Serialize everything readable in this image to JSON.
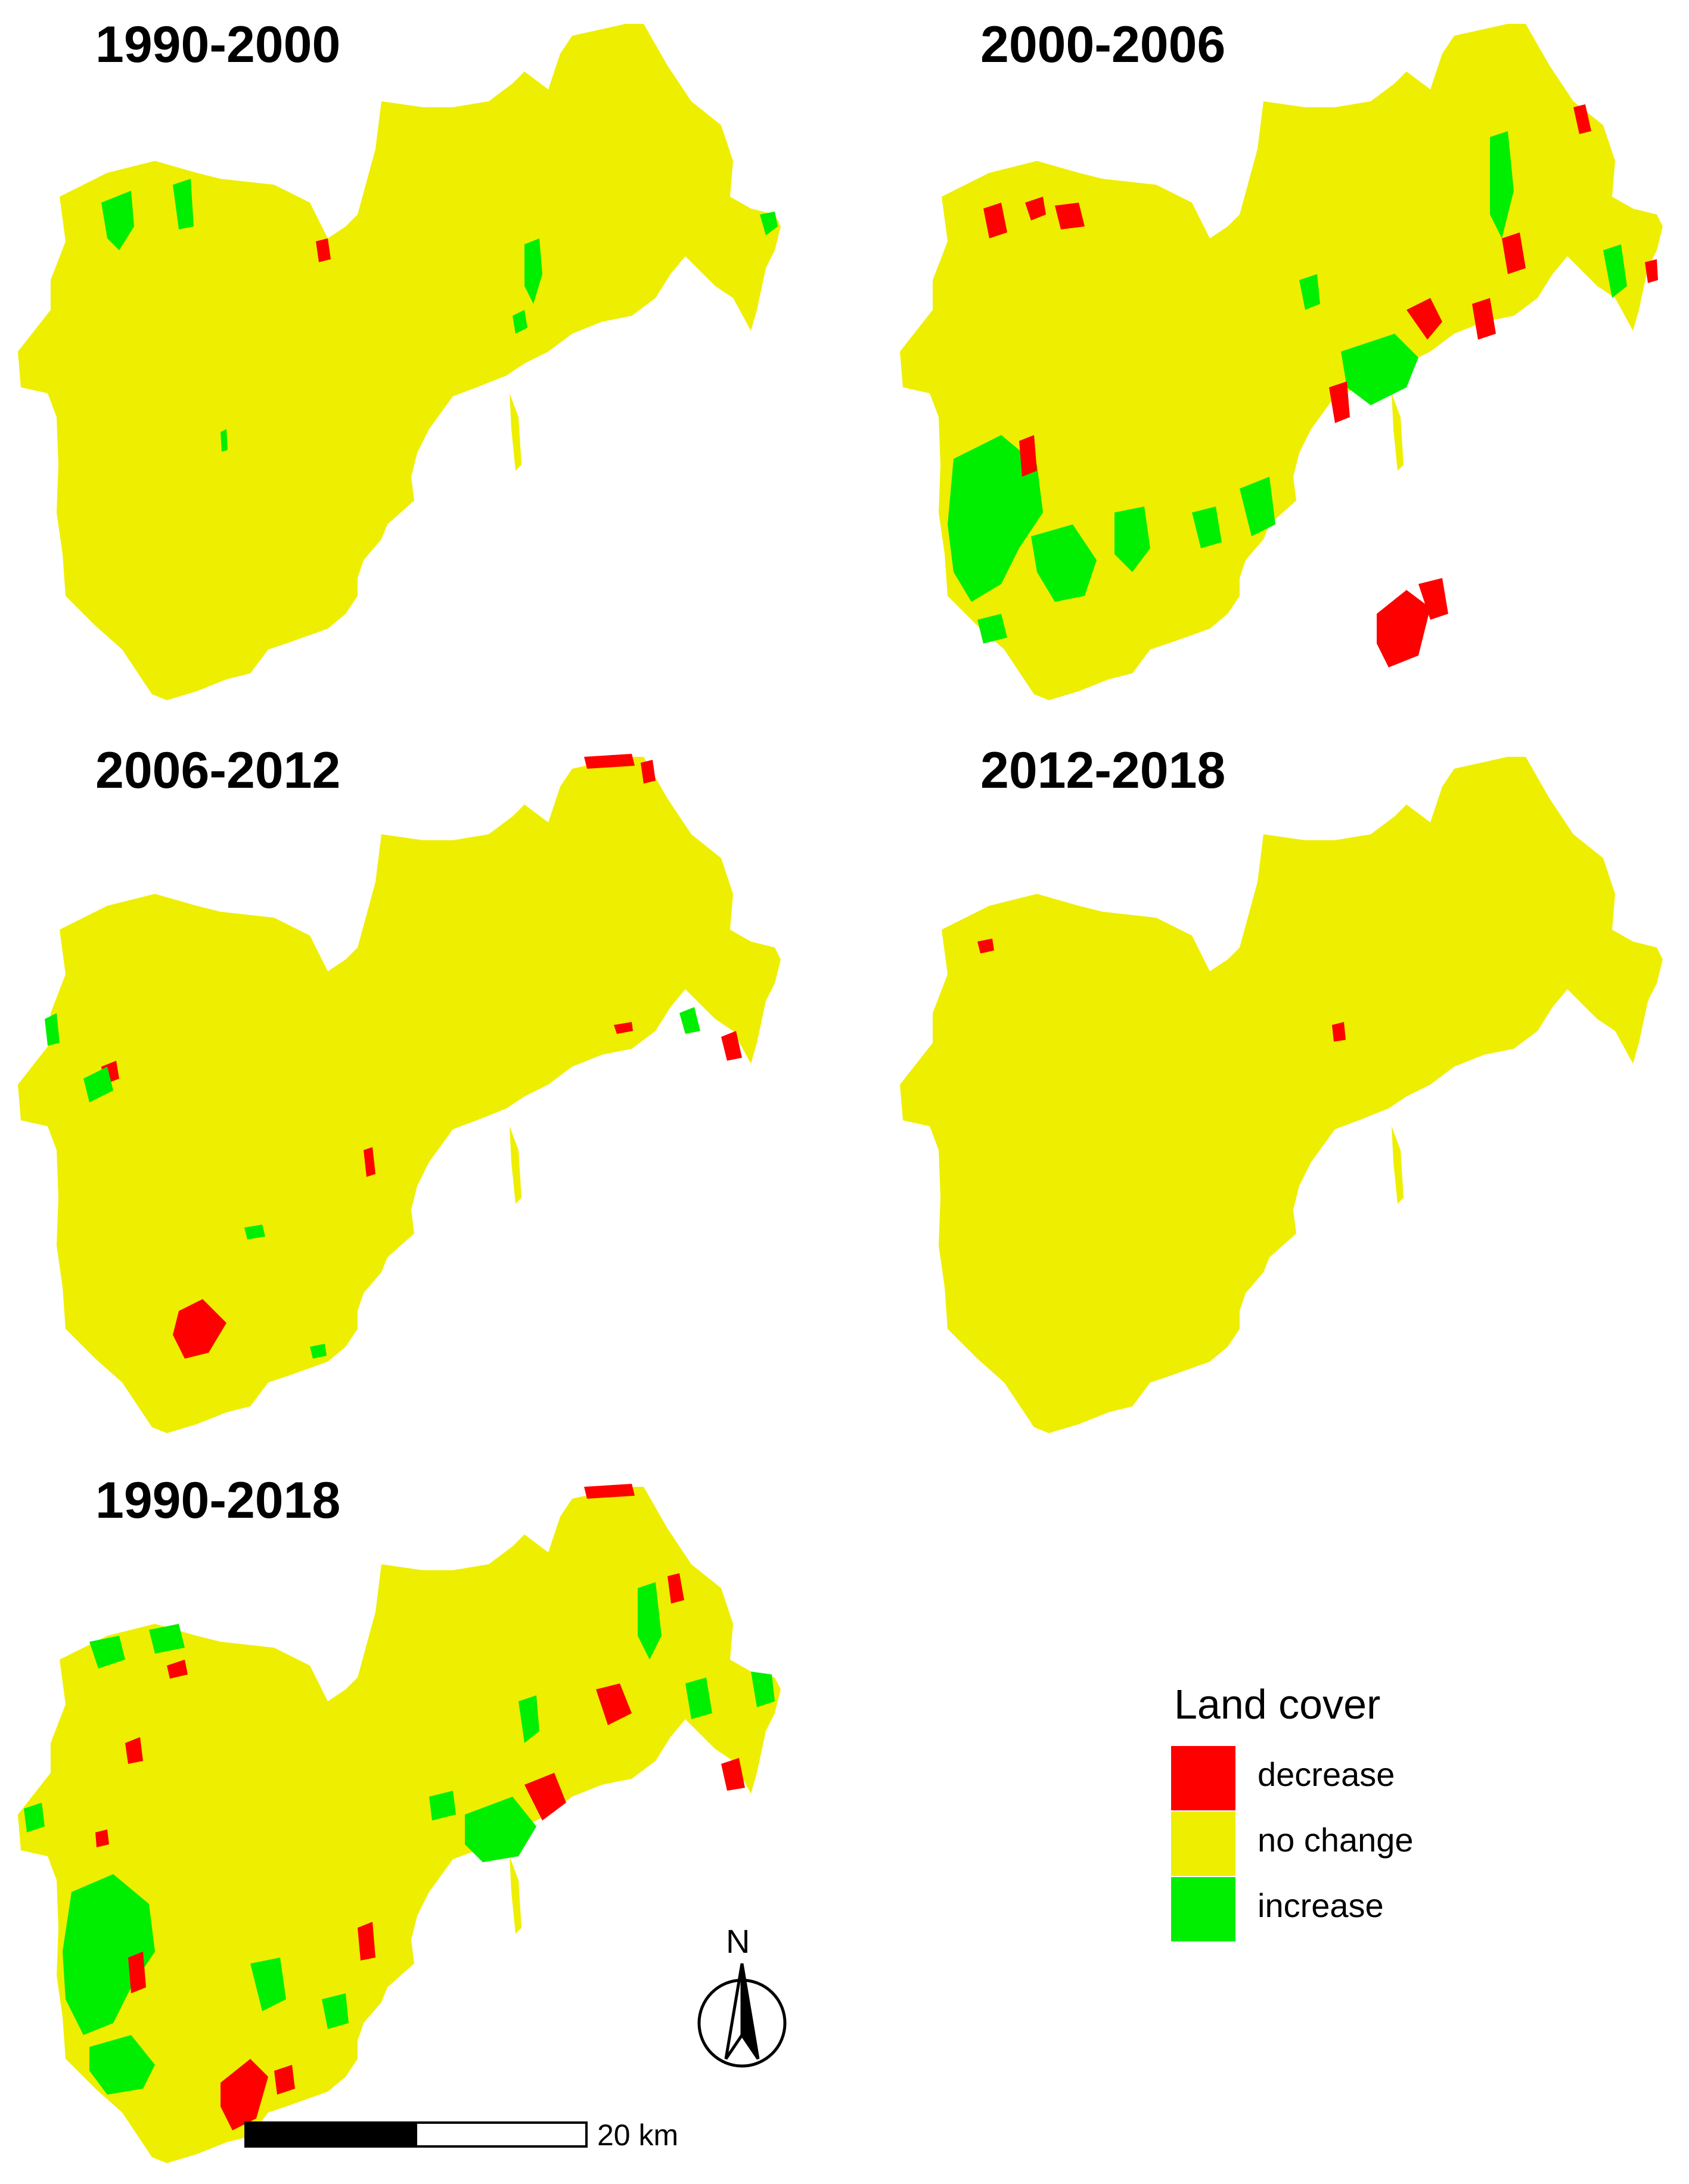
{
  "panels": [
    {
      "title": "1990-2000",
      "key": "p1990_2000"
    },
    {
      "title": "2000-2006",
      "key": "p2000_2006"
    },
    {
      "title": "2006-2012",
      "key": "p2006_2012"
    },
    {
      "title": "2012-2018",
      "key": "p2012_2018"
    },
    {
      "title": "1990-2018",
      "key": "p1990_2018"
    }
  ],
  "legend": {
    "title": "Land cover",
    "items": [
      {
        "label": "decrease",
        "color": "#ff0000"
      },
      {
        "label": "no change",
        "color": "#eeee00"
      },
      {
        "label": "increase",
        "color": "#00ee00"
      }
    ]
  },
  "scale_bar": {
    "label": "20 km"
  },
  "north_arrow": {
    "label": "N"
  },
  "colors": {
    "no_change": "#eeee00",
    "decrease": "#ff0000",
    "increase": "#00ee00"
  }
}
